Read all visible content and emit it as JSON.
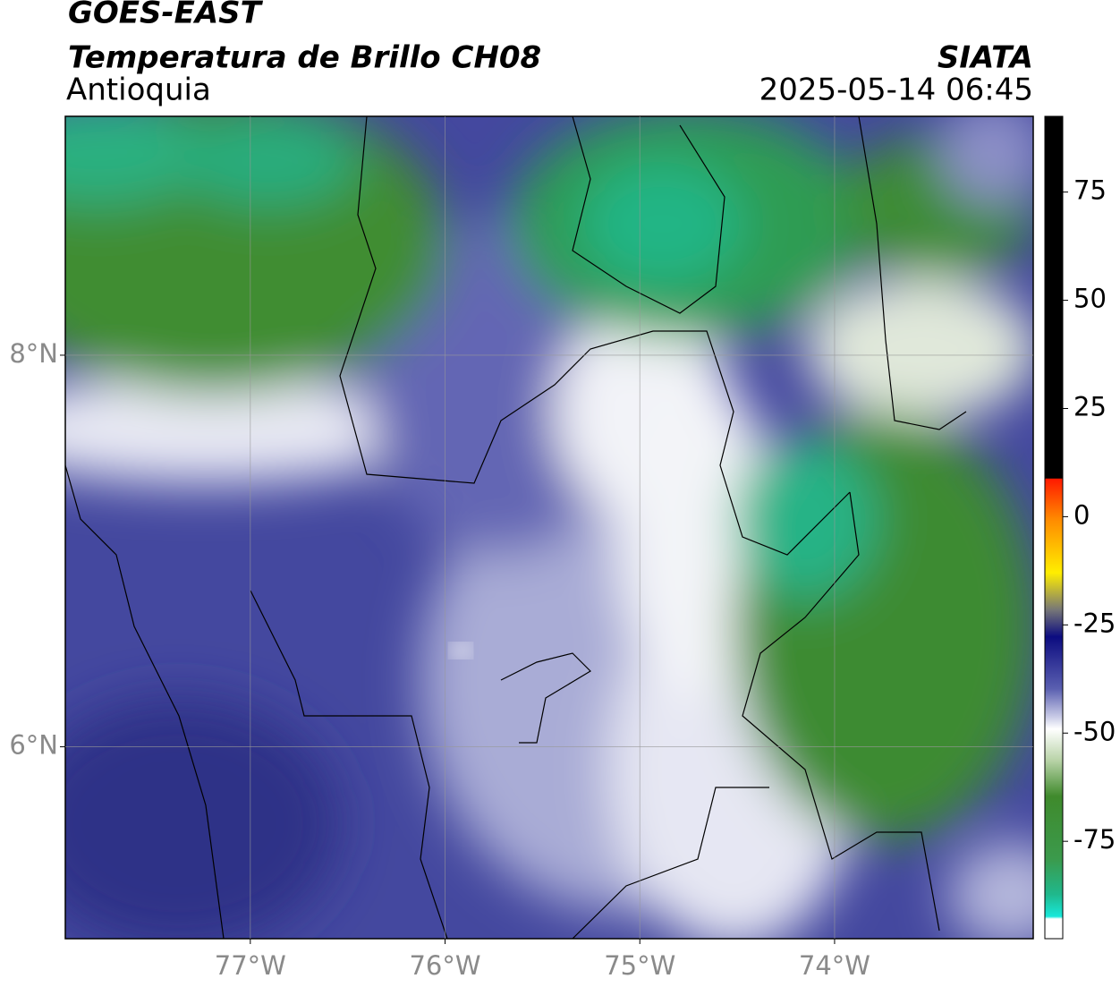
{
  "header": {
    "title": "GOES-EAST",
    "subtitle": "Temperatura de Brillo CH08",
    "region": "Antioquia",
    "source": "SIATA",
    "datetime": "2025-05-14 06:45"
  },
  "map": {
    "xlim": [
      -77.95,
      -72.98
    ],
    "ylim": [
      5.02,
      9.22
    ],
    "xticks": [
      {
        "value": -77,
        "label": "77°W"
      },
      {
        "value": -76,
        "label": "76°W"
      },
      {
        "value": -75,
        "label": "75°W"
      },
      {
        "value": -74,
        "label": "74°W"
      }
    ],
    "yticks": [
      {
        "value": 8,
        "label": "8°N"
      },
      {
        "value": 6,
        "label": "6°N"
      }
    ],
    "grid": true
  },
  "colorbar": {
    "lim": [
      -97.5,
      92.5
    ],
    "ticks": [
      75,
      50,
      25,
      0,
      -25,
      -50,
      -75
    ]
  }
}
